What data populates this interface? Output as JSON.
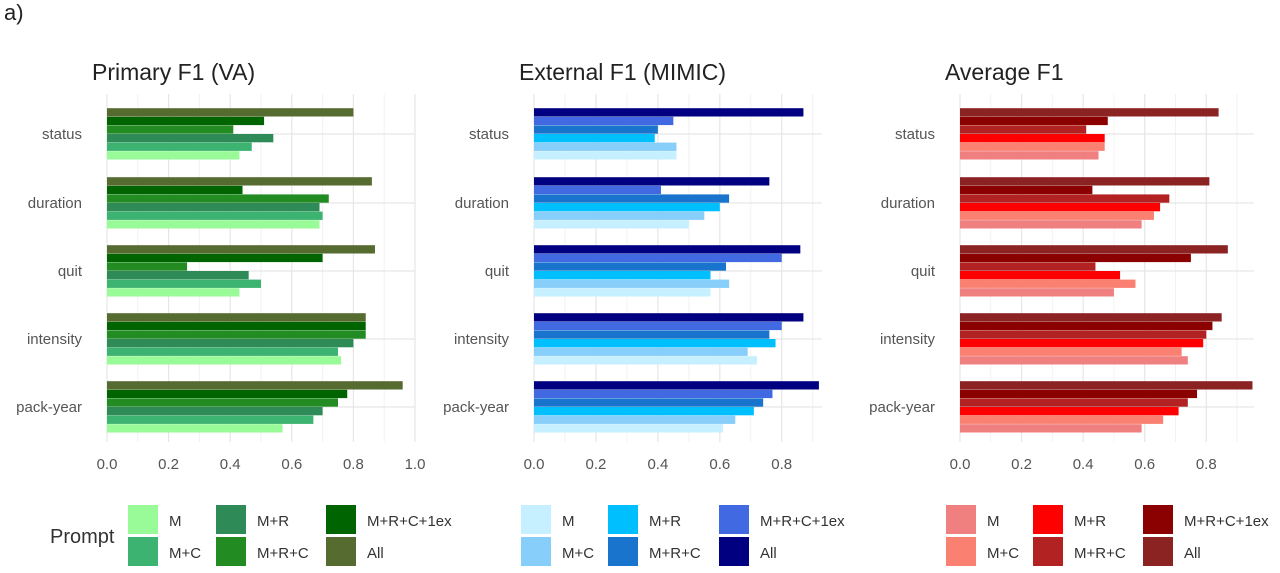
{
  "panel_label": "a)",
  "legend_title": "Prompt",
  "chart_data": [
    {
      "type": "bar",
      "title": "Primary F1 (VA)",
      "orientation": "horizontal",
      "categories": [
        "status",
        "duration",
        "quit",
        "intensity",
        "pack-year"
      ],
      "xlim": [
        0,
        1.0
      ],
      "xticks": [
        "0.0",
        "0.2",
        "0.4",
        "0.6",
        "0.8",
        "1.0"
      ],
      "xtick_values": [
        0,
        0.2,
        0.4,
        0.6,
        0.8,
        1.0
      ],
      "grid": true,
      "series": [
        {
          "name": "M",
          "color": "#98fb98",
          "values": [
            0.43,
            0.69,
            0.43,
            0.76,
            0.57
          ]
        },
        {
          "name": "M+C",
          "color": "#3cb371",
          "values": [
            0.47,
            0.7,
            0.5,
            0.75,
            0.67
          ]
        },
        {
          "name": "M+R",
          "color": "#2e8b57",
          "values": [
            0.54,
            0.69,
            0.46,
            0.8,
            0.7
          ]
        },
        {
          "name": "M+R+C",
          "color": "#228b22",
          "values": [
            0.41,
            0.72,
            0.26,
            0.84,
            0.75
          ]
        },
        {
          "name": "M+R+C+1ex",
          "color": "#006400",
          "values": [
            0.51,
            0.44,
            0.7,
            0.84,
            0.78
          ]
        },
        {
          "name": "All",
          "color": "#556b2f",
          "values": [
            0.8,
            0.86,
            0.87,
            0.84,
            0.96
          ]
        }
      ]
    },
    {
      "type": "bar",
      "title": "External F1 (MIMIC)",
      "orientation": "horizontal",
      "categories": [
        "status",
        "duration",
        "quit",
        "intensity",
        "pack-year"
      ],
      "xlim": [
        0,
        0.93
      ],
      "xticks": [
        "0.0",
        "0.2",
        "0.4",
        "0.6",
        "0.8"
      ],
      "xtick_values": [
        0,
        0.2,
        0.4,
        0.6,
        0.8
      ],
      "grid": true,
      "series": [
        {
          "name": "M",
          "color": "#c6efff",
          "values": [
            0.46,
            0.5,
            0.57,
            0.72,
            0.61
          ]
        },
        {
          "name": "M+C",
          "color": "#87cefa",
          "values": [
            0.46,
            0.55,
            0.63,
            0.69,
            0.65
          ]
        },
        {
          "name": "M+R",
          "color": "#00bfff",
          "values": [
            0.39,
            0.6,
            0.57,
            0.78,
            0.71
          ]
        },
        {
          "name": "M+R+C",
          "color": "#1874cd",
          "values": [
            0.4,
            0.63,
            0.62,
            0.76,
            0.74
          ]
        },
        {
          "name": "M+R+C+1ex",
          "color": "#4169e1",
          "values": [
            0.45,
            0.41,
            0.8,
            0.8,
            0.77
          ]
        },
        {
          "name": "All",
          "color": "#000080",
          "values": [
            0.87,
            0.76,
            0.86,
            0.87,
            0.92
          ]
        }
      ]
    },
    {
      "type": "bar",
      "title": "Average F1",
      "orientation": "horizontal",
      "categories": [
        "status",
        "duration",
        "quit",
        "intensity",
        "pack-year"
      ],
      "xlim": [
        0,
        0.955
      ],
      "xticks": [
        "0.0",
        "0.2",
        "0.4",
        "0.6",
        "0.8"
      ],
      "xtick_values": [
        0,
        0.2,
        0.4,
        0.6,
        0.8
      ],
      "grid": true,
      "series": [
        {
          "name": "M",
          "color": "#f08080",
          "values": [
            0.45,
            0.59,
            0.5,
            0.74,
            0.59
          ]
        },
        {
          "name": "M+C",
          "color": "#fa8072",
          "values": [
            0.47,
            0.63,
            0.57,
            0.72,
            0.66
          ]
        },
        {
          "name": "M+R",
          "color": "#ff0000",
          "values": [
            0.47,
            0.65,
            0.52,
            0.79,
            0.71
          ]
        },
        {
          "name": "M+R+C",
          "color": "#b22222",
          "values": [
            0.41,
            0.68,
            0.44,
            0.8,
            0.74
          ]
        },
        {
          "name": "M+R+C+1ex",
          "color": "#8b0000",
          "values": [
            0.48,
            0.43,
            0.75,
            0.82,
            0.77
          ]
        },
        {
          "name": "All",
          "color": "#8b2323",
          "values": [
            0.84,
            0.81,
            0.87,
            0.85,
            0.95
          ]
        }
      ]
    }
  ]
}
